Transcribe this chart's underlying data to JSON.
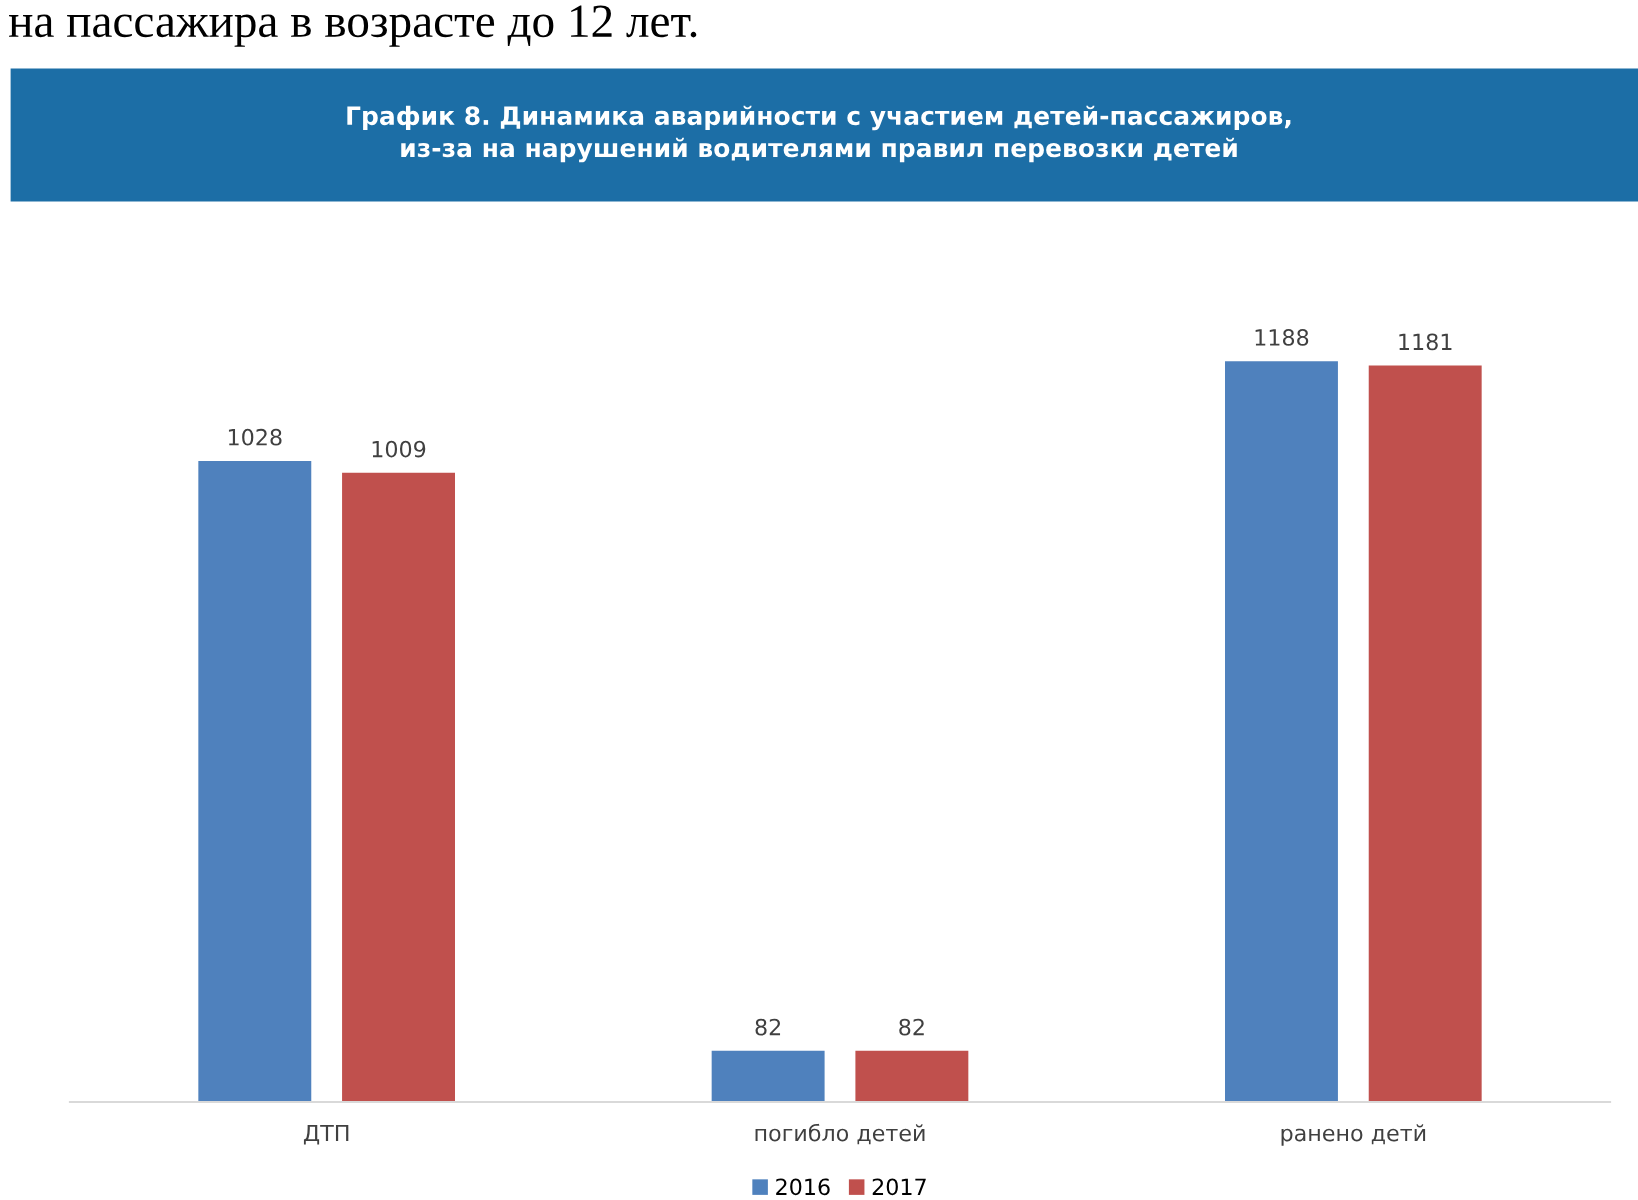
{
  "chart_data": {
    "type": "bar",
    "title": "График 8. Динамика аварийности с участием детей-пассажиров,\nиз-за на нарушений водителями правил перевозки детей",
    "annotations": [
      "на пассажира в возрасте до 12 лет."
    ],
    "categories": [
      "ДТП",
      "погибло детей",
      "ранено детй"
    ],
    "series": [
      {
        "name": "2016",
        "color": "#4f81bd",
        "values": [
          1028,
          82,
          1188
        ]
      },
      {
        "name": "2017",
        "color": "#c0504d",
        "values": [
          1009,
          82,
          1181
        ]
      }
    ],
    "data_labels": true,
    "legend": "bottom",
    "grid": false
  }
}
